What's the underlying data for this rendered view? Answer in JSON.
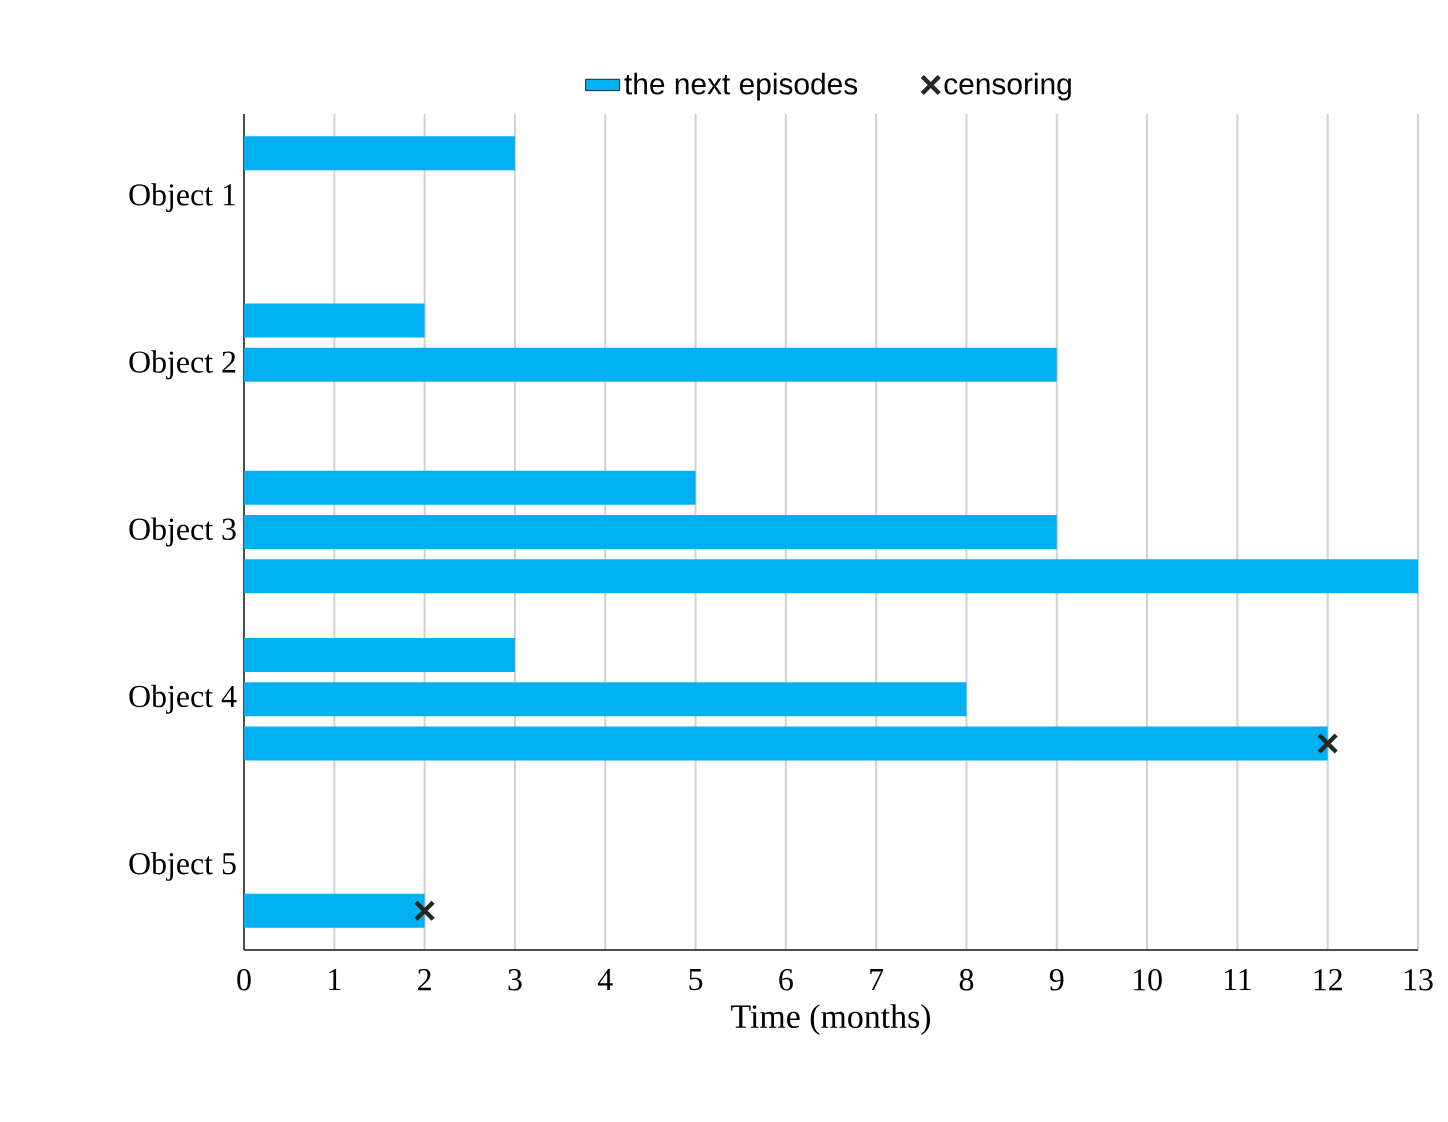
{
  "chart_data": {
    "type": "bar",
    "orientation": "horizontal",
    "categories": [
      "Object 1",
      "Object 2",
      "Object 3",
      "Object 4",
      "Object 5"
    ],
    "series": [
      {
        "name": "the next episodes",
        "color": "#00b0f0",
        "values": [
          3,
          2,
          5,
          3,
          null
        ]
      },
      {
        "color": "#00b0f0",
        "values": [
          null,
          9,
          9,
          8,
          null
        ]
      },
      {
        "color": "#00b0f0",
        "values": [
          null,
          null,
          13,
          12,
          2
        ]
      },
      {
        "name": "censoring",
        "type": "scatter",
        "marker": "cross",
        "color": "#262626",
        "values": [
          null,
          null,
          null,
          12,
          2
        ]
      }
    ],
    "xlabel": "Time (months)",
    "xlim": [
      0,
      13
    ],
    "xticks": [
      0,
      1,
      2,
      3,
      4,
      5,
      6,
      7,
      8,
      9,
      10,
      11,
      12,
      13
    ],
    "grid": "x",
    "legend": "top"
  }
}
